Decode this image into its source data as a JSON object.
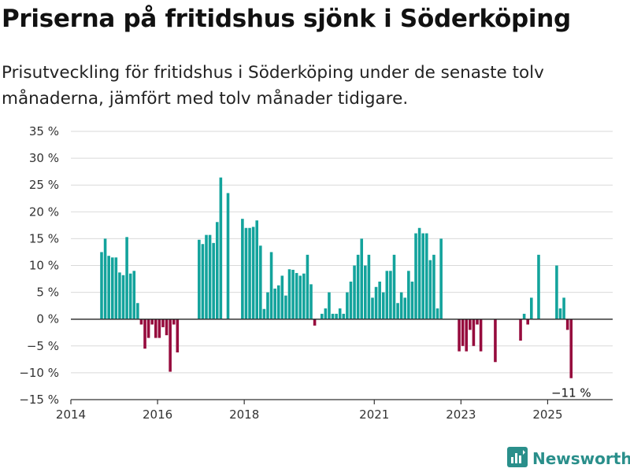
{
  "title": "Priserna på fritidshus sjönk i Söderköping",
  "subtitle": "Prisutveckling för fritidshus i Söderköping under de senaste tolv månaderna, jämfört med tolv månader tidigare.",
  "brand": "Newsworthy",
  "colors": {
    "positive": "#13a39c",
    "negative": "#960b3d",
    "grid": "#d9d9d9",
    "axis": "#333333",
    "brand": "#2a8f8b"
  },
  "chart_data": {
    "type": "bar",
    "title": "Priserna på fritidshus sjönk i Söderköping",
    "xlabel": "",
    "ylabel": "",
    "ylim": [
      -15,
      35
    ],
    "y_ticks": [
      35,
      30,
      25,
      20,
      15,
      10,
      5,
      0,
      -5,
      -10,
      -15
    ],
    "y_tick_labels": [
      "35 %",
      "30 %",
      "25 %",
      "20 %",
      "15 %",
      "10 %",
      "5 %",
      "0 %",
      "−5 %",
      "−10 %",
      "−15 %"
    ],
    "x_range": [
      "2014-01",
      "2026-07"
    ],
    "x_ticks": [
      "2014-01",
      "2016-01",
      "2018-01",
      "2021-01",
      "2023-01",
      "2025-01"
    ],
    "x_tick_labels": [
      "2014",
      "2016",
      "2018",
      "2021",
      "2023",
      "2025"
    ],
    "grid": true,
    "annotation": {
      "month": "2025-07",
      "value": -11,
      "label": "−11 %"
    },
    "series": [
      {
        "values": [
          {
            "month": "2014-09",
            "value": 12.5
          },
          {
            "month": "2014-10",
            "value": 15.0
          },
          {
            "month": "2014-11",
            "value": 11.8
          },
          {
            "month": "2014-12",
            "value": 11.5
          },
          {
            "month": "2015-01",
            "value": 11.5
          },
          {
            "month": "2015-02",
            "value": 8.7
          },
          {
            "month": "2015-03",
            "value": 8.2
          },
          {
            "month": "2015-04",
            "value": 15.3
          },
          {
            "month": "2015-05",
            "value": 8.5
          },
          {
            "month": "2015-06",
            "value": 9.0
          },
          {
            "month": "2015-07",
            "value": 3.0
          },
          {
            "month": "2015-08",
            "value": -1.0
          },
          {
            "month": "2015-09",
            "value": -5.5
          },
          {
            "month": "2015-10",
            "value": -3.5
          },
          {
            "month": "2015-11",
            "value": -1.0
          },
          {
            "month": "2015-12",
            "value": -3.5
          },
          {
            "month": "2016-01",
            "value": -3.5
          },
          {
            "month": "2016-02",
            "value": -1.5
          },
          {
            "month": "2016-03",
            "value": -3.0
          },
          {
            "month": "2016-04",
            "value": -9.8
          },
          {
            "month": "2016-05",
            "value": -1.0
          },
          {
            "month": "2016-06",
            "value": -6.2
          },
          {
            "month": "2016-12",
            "value": 14.8
          },
          {
            "month": "2017-01",
            "value": 14.0
          },
          {
            "month": "2017-02",
            "value": 15.7
          },
          {
            "month": "2017-03",
            "value": 15.7
          },
          {
            "month": "2017-04",
            "value": 14.2
          },
          {
            "month": "2017-05",
            "value": 18.1
          },
          {
            "month": "2017-06",
            "value": 26.4
          },
          {
            "month": "2017-08",
            "value": 23.5
          },
          {
            "month": "2017-12",
            "value": 18.7
          },
          {
            "month": "2018-01",
            "value": 17.0
          },
          {
            "month": "2018-02",
            "value": 17.0
          },
          {
            "month": "2018-03",
            "value": 17.2
          },
          {
            "month": "2018-04",
            "value": 18.4
          },
          {
            "month": "2018-05",
            "value": 13.7
          },
          {
            "month": "2018-06",
            "value": 1.9
          },
          {
            "month": "2018-07",
            "value": 5.0
          },
          {
            "month": "2018-08",
            "value": 12.5
          },
          {
            "month": "2018-09",
            "value": 5.7
          },
          {
            "month": "2018-10",
            "value": 6.3
          },
          {
            "month": "2018-11",
            "value": 8.1
          },
          {
            "month": "2018-12",
            "value": 4.4
          },
          {
            "month": "2019-01",
            "value": 9.3
          },
          {
            "month": "2019-02",
            "value": 9.2
          },
          {
            "month": "2019-03",
            "value": 8.6
          },
          {
            "month": "2019-04",
            "value": 8.1
          },
          {
            "month": "2019-05",
            "value": 8.5
          },
          {
            "month": "2019-06",
            "value": 12.0
          },
          {
            "month": "2019-07",
            "value": 6.5
          },
          {
            "month": "2019-08",
            "value": -1.2
          },
          {
            "month": "2019-10",
            "value": 1.0
          },
          {
            "month": "2019-11",
            "value": 2.0
          },
          {
            "month": "2019-12",
            "value": 5.0
          },
          {
            "month": "2020-01",
            "value": 1.0
          },
          {
            "month": "2020-02",
            "value": 1.0
          },
          {
            "month": "2020-03",
            "value": 2.0
          },
          {
            "month": "2020-04",
            "value": 1.0
          },
          {
            "month": "2020-05",
            "value": 5.0
          },
          {
            "month": "2020-06",
            "value": 7.0
          },
          {
            "month": "2020-07",
            "value": 10.0
          },
          {
            "month": "2020-08",
            "value": 12.0
          },
          {
            "month": "2020-09",
            "value": 15.0
          },
          {
            "month": "2020-10",
            "value": 10.0
          },
          {
            "month": "2020-11",
            "value": 12.0
          },
          {
            "month": "2020-12",
            "value": 4.0
          },
          {
            "month": "2021-01",
            "value": 6.0
          },
          {
            "month": "2021-02",
            "value": 7.0
          },
          {
            "month": "2021-03",
            "value": 5.0
          },
          {
            "month": "2021-04",
            "value": 9.0
          },
          {
            "month": "2021-05",
            "value": 9.0
          },
          {
            "month": "2021-06",
            "value": 12.0
          },
          {
            "month": "2021-07",
            "value": 3.0
          },
          {
            "month": "2021-08",
            "value": 5.0
          },
          {
            "month": "2021-09",
            "value": 4.0
          },
          {
            "month": "2021-10",
            "value": 9.0
          },
          {
            "month": "2021-11",
            "value": 7.0
          },
          {
            "month": "2021-12",
            "value": 16.0
          },
          {
            "month": "2022-01",
            "value": 17.0
          },
          {
            "month": "2022-02",
            "value": 16.0
          },
          {
            "month": "2022-03",
            "value": 16.0
          },
          {
            "month": "2022-04",
            "value": 11.0
          },
          {
            "month": "2022-05",
            "value": 12.0
          },
          {
            "month": "2022-06",
            "value": 2.0
          },
          {
            "month": "2022-07",
            "value": 15.0
          },
          {
            "month": "2022-12",
            "value": -6.0
          },
          {
            "month": "2023-01",
            "value": -5.0
          },
          {
            "month": "2023-02",
            "value": -6.0
          },
          {
            "month": "2023-03",
            "value": -2.0
          },
          {
            "month": "2023-04",
            "value": -5.0
          },
          {
            "month": "2023-05",
            "value": -1.0
          },
          {
            "month": "2023-06",
            "value": -6.0
          },
          {
            "month": "2023-10",
            "value": -8.0
          },
          {
            "month": "2024-05",
            "value": -4.0
          },
          {
            "month": "2024-06",
            "value": 1.0
          },
          {
            "month": "2024-07",
            "value": -1.0
          },
          {
            "month": "2024-08",
            "value": 4.0
          },
          {
            "month": "2024-10",
            "value": 12.0
          },
          {
            "month": "2025-03",
            "value": 10.0
          },
          {
            "month": "2025-04",
            "value": 2.0
          },
          {
            "month": "2025-05",
            "value": 4.0
          },
          {
            "month": "2025-06",
            "value": -2.0
          },
          {
            "month": "2025-07",
            "value": -11.0
          }
        ]
      }
    ]
  }
}
